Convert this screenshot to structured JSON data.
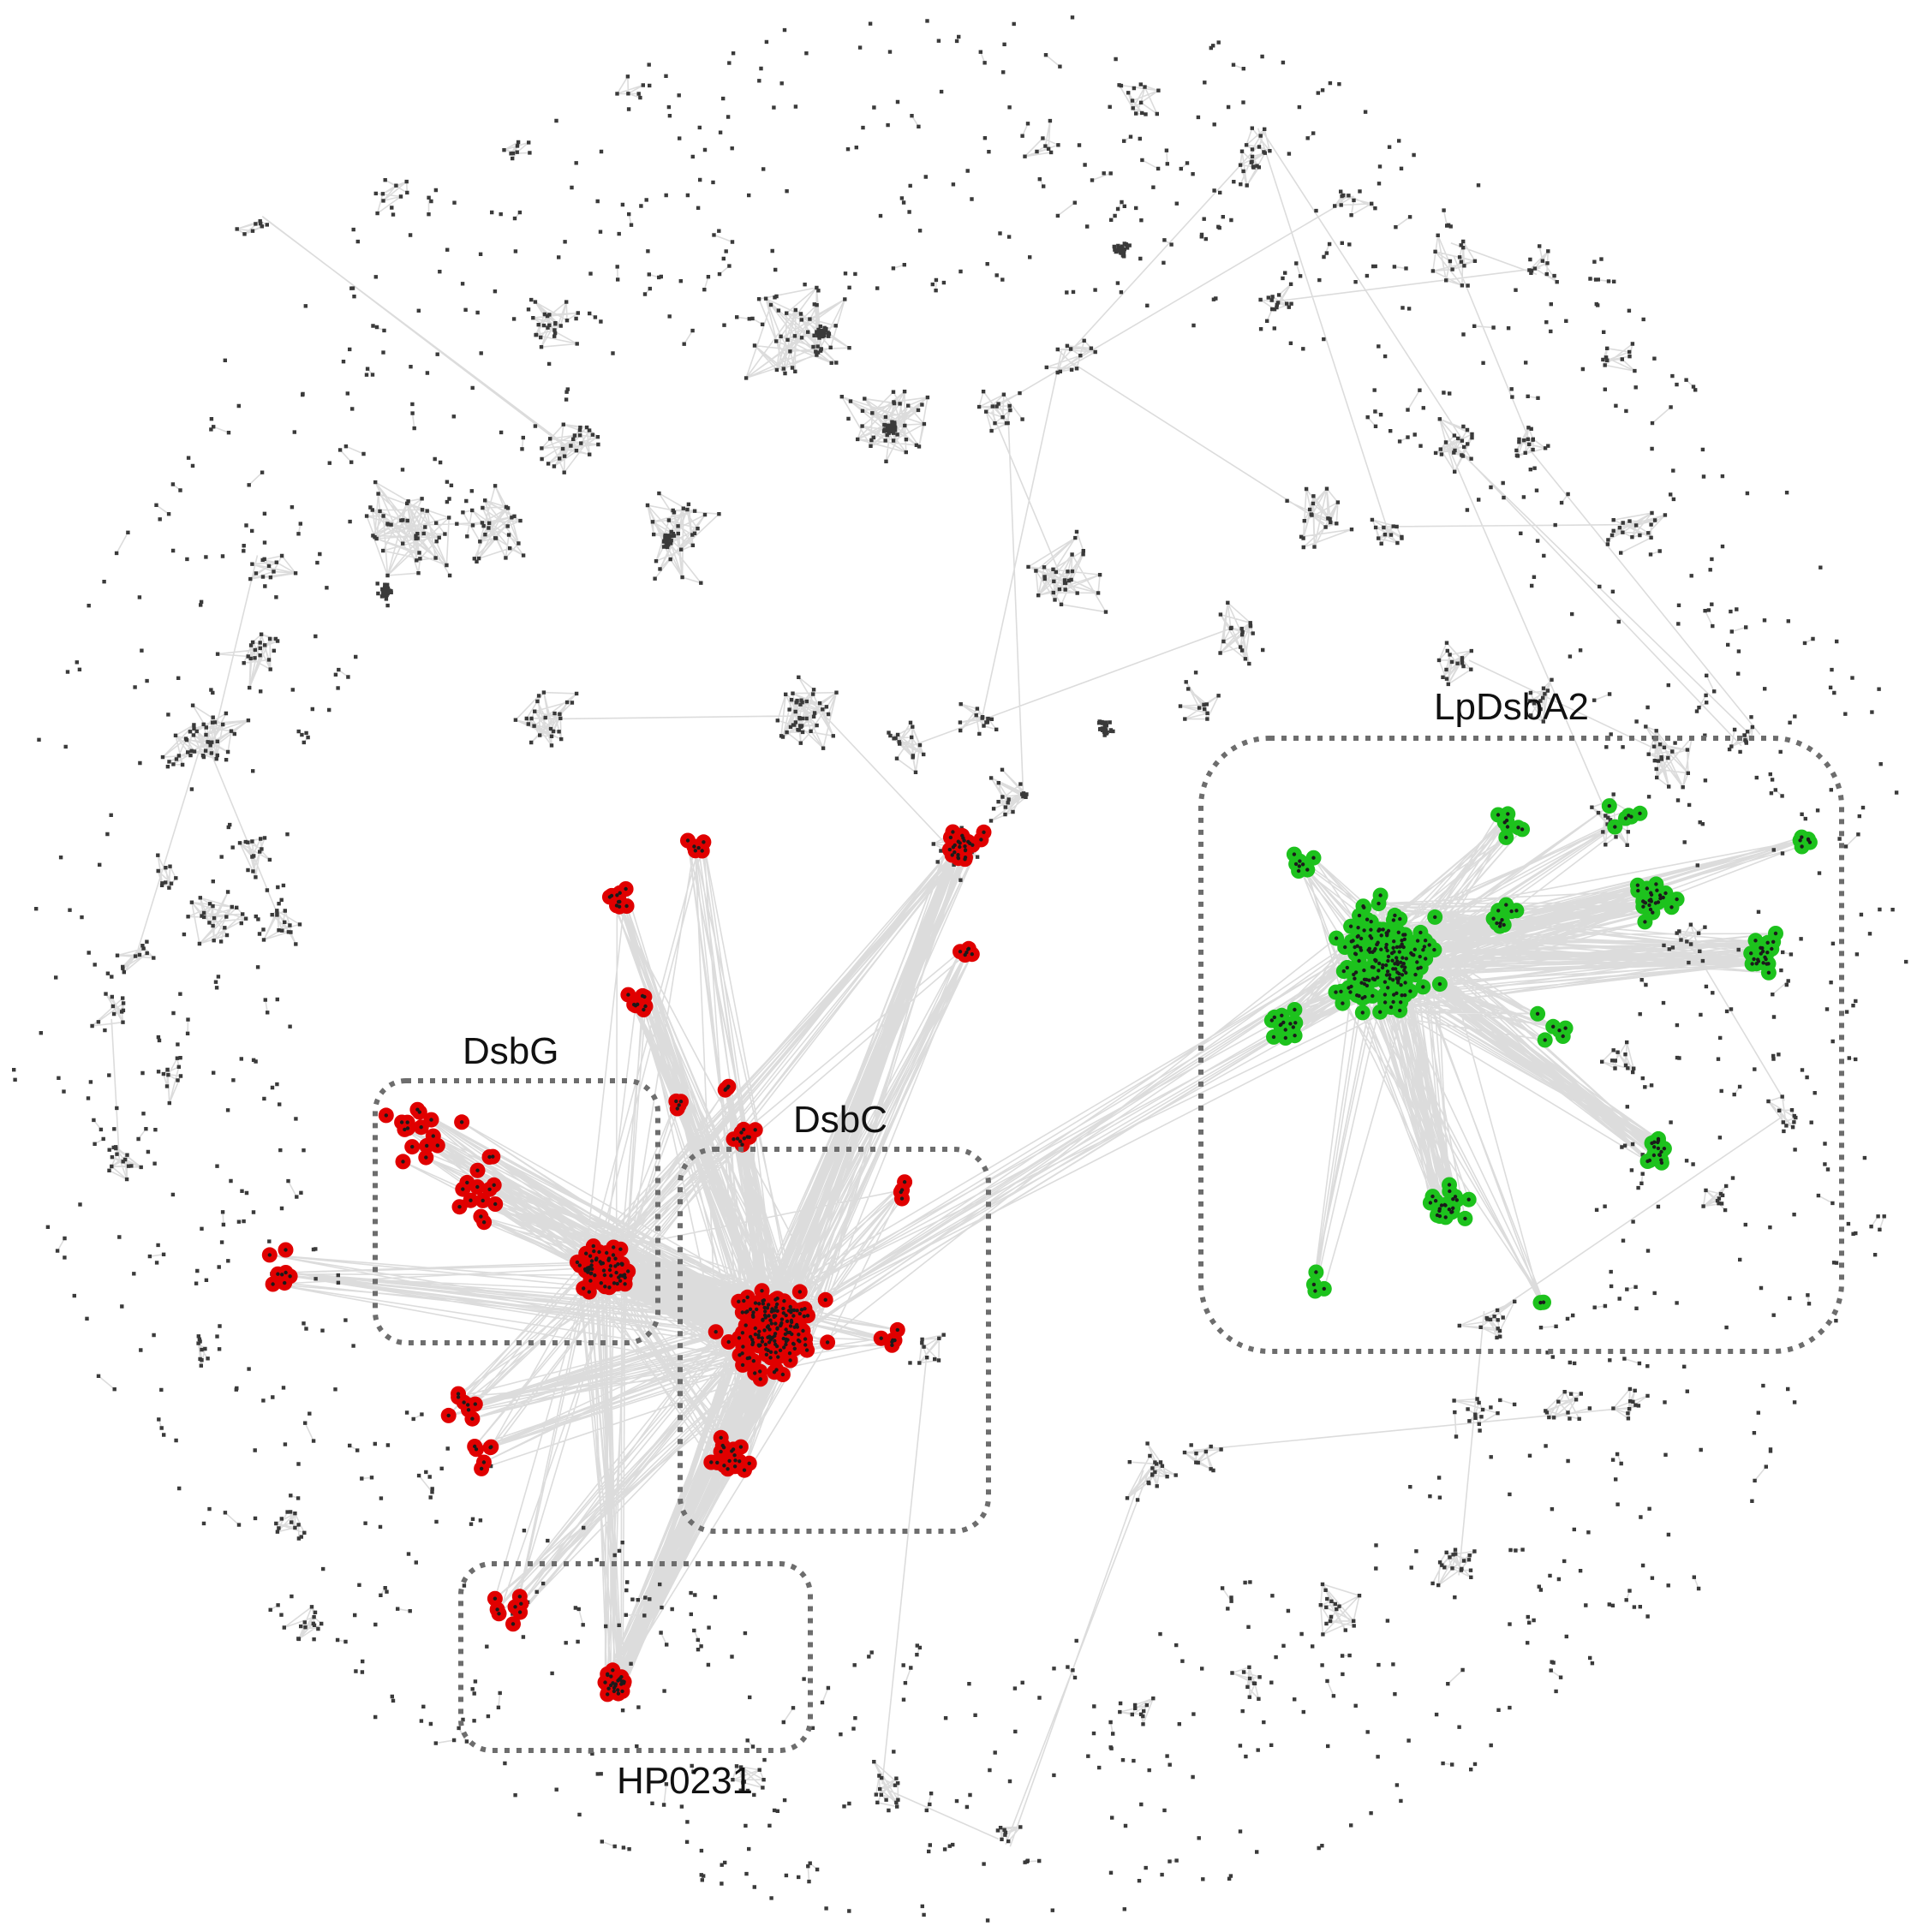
{
  "figure": {
    "description_free": true,
    "colors": {
      "background": "#ffffff",
      "edge": "#dcdcdc",
      "gray_node": "#3a3a3a",
      "red_node": "#e00000",
      "green_node": "#1dc21d",
      "node_core": "#1a1a1a",
      "box_stroke": "#6d6d6d"
    },
    "clusters": [
      {
        "id": "lpdsba2",
        "label": "LpDsbA2",
        "color": "green"
      },
      {
        "id": "dsbg",
        "label": "DsbG",
        "color": "red"
      },
      {
        "id": "dsbc",
        "label": "DsbC",
        "color": "red"
      },
      {
        "id": "hp0231",
        "label": "HP0231",
        "color": "red"
      }
    ]
  }
}
